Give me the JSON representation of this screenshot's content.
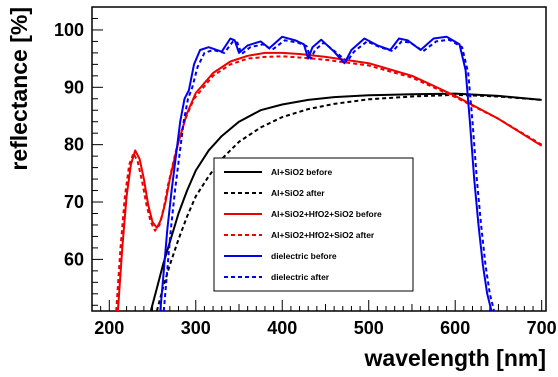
{
  "chart_data": {
    "type": "line",
    "xlabel": "wavelength [nm]",
    "ylabel": "reflectance [%]",
    "xlim": [
      180,
      705
    ],
    "ylim": [
      51,
      104
    ],
    "x_ticks": [
      200,
      300,
      400,
      500,
      600,
      700
    ],
    "y_ticks": [
      60,
      70,
      80,
      90,
      100
    ],
    "grid": false,
    "legend_position": "center-right",
    "series": [
      {
        "name": "Al+SiO2 before",
        "color": "#000000",
        "dash": "solid",
        "x": [
          248,
          255,
          262,
          270,
          280,
          290,
          300,
          315,
          330,
          350,
          375,
          400,
          430,
          460,
          500,
          550,
          600,
          650,
          700
        ],
        "y": [
          51,
          55,
          59,
          63,
          68,
          72,
          75.5,
          79,
          81.5,
          84,
          86,
          87,
          87.8,
          88.3,
          88.6,
          88.8,
          88.9,
          88.5,
          87.8
        ]
      },
      {
        "name": "Al+SiO2 after",
        "color": "#000000",
        "dash": "dashed",
        "x": [
          255,
          262,
          270,
          280,
          290,
          300,
          315,
          330,
          350,
          375,
          400,
          430,
          460,
          500,
          550,
          600,
          650,
          700
        ],
        "y": [
          51,
          55,
          59,
          63.5,
          67.5,
          71,
          74.5,
          77.5,
          80.5,
          83,
          84.8,
          86.2,
          87.1,
          87.9,
          88.4,
          88.7,
          88.4,
          87.8
        ]
      },
      {
        "name": "Al+SiO2+HfO2+SiO2 before",
        "color": "#ee0000",
        "dash": "solid",
        "x": [
          210,
          215,
          220,
          225,
          230,
          235,
          240,
          245,
          250,
          255,
          260,
          265,
          270,
          280,
          290,
          300,
          320,
          340,
          360,
          380,
          400,
          420,
          450,
          500,
          550,
          600,
          650,
          700
        ],
        "y": [
          51,
          62,
          71,
          76.5,
          79,
          77.5,
          74,
          69.5,
          66.5,
          65.5,
          67,
          70,
          74,
          80.5,
          85.5,
          89,
          92.5,
          94.5,
          95.5,
          96,
          96,
          95.8,
          95.3,
          94.2,
          92,
          88.5,
          84.5,
          79.8
        ]
      },
      {
        "name": "Al+SiO2+HfO2+SiO2 after",
        "color": "#ee0000",
        "dash": "dashed",
        "x": [
          208,
          213,
          218,
          223,
          228,
          233,
          238,
          243,
          248,
          253,
          258,
          263,
          268,
          278,
          288,
          298,
          320,
          340,
          360,
          380,
          400,
          420,
          450,
          500,
          550,
          600,
          650,
          700
        ],
        "y": [
          51,
          62,
          71,
          76.5,
          78.5,
          77,
          73.5,
          69.5,
          66.5,
          65,
          66,
          69,
          73,
          79.5,
          84.5,
          88,
          92,
          94,
          95,
          95.3,
          95.4,
          95.2,
          94.8,
          93.8,
          91.7,
          88.3,
          84.5,
          80
        ]
      },
      {
        "name": "dielectric before",
        "color": "#0000ee",
        "dash": "solid",
        "x": [
          259,
          263,
          267,
          272,
          277,
          282,
          287,
          292,
          298,
          305,
          315,
          330,
          340,
          345,
          350,
          360,
          375,
          385,
          400,
          415,
          425,
          430,
          435,
          445,
          460,
          472,
          480,
          495,
          510,
          525,
          535,
          545,
          560,
          575,
          590,
          605,
          612,
          617,
          622,
          627,
          632,
          637,
          642
        ],
        "y": [
          51,
          58,
          65,
          72,
          78,
          84,
          88,
          89.5,
          94,
          96.5,
          97,
          96.2,
          98.5,
          98.2,
          96,
          97.3,
          98,
          96.8,
          98.8,
          98.2,
          97.5,
          95,
          97,
          98.3,
          96.2,
          94.2,
          96.5,
          98.5,
          97.3,
          96.5,
          98.5,
          98.2,
          96.5,
          98.5,
          98.8,
          97.5,
          93,
          84,
          74,
          66,
          59,
          54,
          51
        ]
      },
      {
        "name": "dielectric after",
        "color": "#0000ee",
        "dash": "dashed",
        "x": [
          263,
          267,
          271,
          276,
          281,
          286,
          291,
          296,
          302,
          310,
          320,
          333,
          343,
          348,
          353,
          363,
          378,
          388,
          403,
          418,
          428,
          433,
          438,
          448,
          463,
          475,
          483,
          498,
          513,
          528,
          538,
          548,
          563,
          578,
          593,
          608,
          615,
          620,
          625,
          630,
          635,
          640,
          645
        ],
        "y": [
          51,
          58,
          65,
          72,
          78,
          84,
          88,
          90,
          93.5,
          96,
          96.5,
          96,
          98,
          97.8,
          95.8,
          97,
          97.5,
          96.5,
          98.2,
          97.8,
          97.2,
          95,
          96.5,
          97.8,
          96,
          94.5,
          96.2,
          98,
          97,
          96.3,
          98,
          97.8,
          96.3,
          98,
          98.3,
          97,
          92.5,
          84,
          74,
          66,
          59,
          54,
          51
        ]
      }
    ]
  }
}
